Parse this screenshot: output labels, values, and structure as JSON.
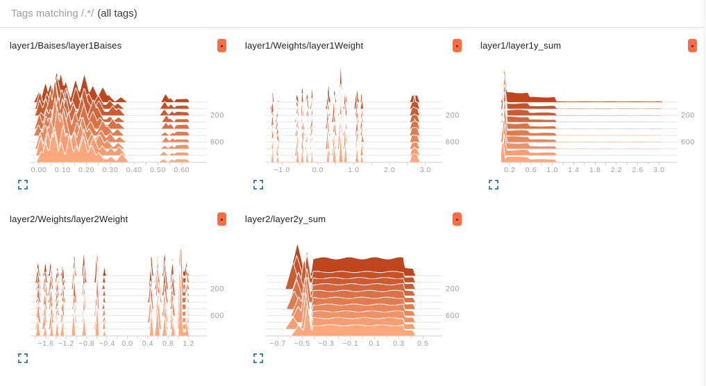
{
  "toolbar": {
    "filter_muted": "Tags matching /.*/",
    "filter_strong": "(all tags)"
  },
  "colors": {
    "page_bg": "#ffffff",
    "toolbar_border": "#e0e0e0",
    "toolbar_muted": "#9e9e9e",
    "toolbar_strong": "#3c3c3c",
    "title_text": "#212121",
    "pin_bg": "#f96c44",
    "pin_dot": "#71290f",
    "expand_icon": "#3f83a9",
    "ridge_back": "#bf451c",
    "ridge_front": "#fda87c",
    "ridge_outline": "#ffffff",
    "grid_line": "#e6e6e6",
    "axis_line": "#d9d9d9",
    "tick_mark": "#cfcfcf",
    "tick_label": "#9e9e9e"
  },
  "icons": {
    "pin": "pin-toggle-icon",
    "expand": "expand-icon"
  },
  "chart_data": [
    {
      "type": "histogram_ridgeline",
      "title": "layer1/Baises/layer1Baises",
      "x_min": -0.035,
      "x_max": 0.65,
      "x_tick_values": [
        0.0,
        0.1,
        0.2,
        0.3,
        0.4,
        0.5,
        0.6
      ],
      "x_tick_labels": [
        "0.00",
        "0.10",
        "0.20",
        "0.30",
        "0.40",
        "0.50",
        "0.60"
      ],
      "y_axis_labels": [
        {
          "text": "200",
          "line": 2
        },
        {
          "text": "600",
          "line": 6
        }
      ],
      "ridges": 10,
      "seed": 11,
      "jitter": 0.3,
      "back_flat_scale": 1.0,
      "bumps": [
        [
          0.005,
          0.4,
          0.02
        ],
        [
          0.03,
          0.6,
          0.022
        ],
        [
          0.052,
          0.72,
          0.022
        ],
        [
          0.072,
          1.0,
          0.024
        ],
        [
          0.095,
          0.8,
          0.024
        ],
        [
          0.12,
          0.62,
          0.024
        ],
        [
          0.15,
          0.55,
          0.026
        ],
        [
          0.185,
          0.62,
          0.03
        ],
        [
          0.22,
          0.5,
          0.032
        ],
        [
          0.258,
          0.36,
          0.032
        ],
        [
          0.298,
          0.22,
          0.03
        ],
        [
          0.34,
          0.14,
          0.028,
          0.8
        ],
        [
          0.528,
          0.2,
          0.02,
          -0.6
        ],
        [
          0.556,
          0.17,
          0.018,
          -0.6
        ]
      ],
      "flats": [
        [
          0.0,
          0.3,
          0.1,
          0.9
        ],
        [
          0.575,
          0.625,
          0.1,
          2.0
        ]
      ]
    },
    {
      "type": "histogram_ridgeline",
      "title": "layer1/Weights/layer1Weight",
      "x_min": -1.45,
      "x_max": 3.1,
      "x_tick_values": [
        -1.0,
        0.0,
        1.0,
        2.0,
        3.0
      ],
      "x_tick_labels": [
        "−1.0",
        "0.0",
        "1.0",
        "2.0",
        "3.0"
      ],
      "y_axis_labels": [
        {
          "text": "200",
          "line": 2
        },
        {
          "text": "600",
          "line": 6
        }
      ],
      "ridges": 10,
      "seed": 22,
      "jitter": 0.3,
      "back_flat_scale": 1.0,
      "bumps": [
        [
          -1.27,
          0.5,
          0.035
        ],
        [
          -1.13,
          0.42,
          0.03
        ],
        [
          -0.58,
          0.45,
          0.038
        ],
        [
          -0.43,
          0.58,
          0.035
        ],
        [
          -0.3,
          0.5,
          0.03
        ],
        [
          -0.17,
          0.45,
          0.03
        ],
        [
          0.28,
          0.55,
          0.04
        ],
        [
          0.46,
          0.62,
          0.042
        ],
        [
          0.63,
          1.05,
          0.048
        ],
        [
          0.76,
          0.7,
          0.03
        ],
        [
          1.08,
          0.52,
          0.04
        ],
        [
          1.23,
          0.38,
          0.035
        ],
        [
          2.7,
          0.42,
          0.04,
          -0.4
        ]
      ],
      "flats": [
        [
          2.62,
          2.78,
          0.2,
          1.4
        ]
      ]
    },
    {
      "type": "histogram_ridgeline",
      "title": "layer1/layer1y_sum",
      "x_min": 0.04,
      "x_max": 3.1,
      "x_tick_values": [
        0.2,
        0.6,
        1.0,
        1.4,
        1.8,
        2.2,
        2.6,
        3.0
      ],
      "x_tick_labels": [
        "0.2",
        "0.6",
        "1.0",
        "1.4",
        "1.8",
        "2.2",
        "2.6",
        "3.0"
      ],
      "y_axis_labels": [
        {
          "text": "200",
          "line": 2
        },
        {
          "text": "600",
          "line": 6
        }
      ],
      "ridges": 10,
      "seed": 33,
      "jitter": 0.12,
      "back_flat_scale": 1.8,
      "bumps": [
        [
          0.09,
          1.05,
          0.05,
          -0.35
        ]
      ],
      "flats": [
        [
          0.13,
          0.55,
          0.15
        ],
        [
          0.55,
          1.05,
          0.08
        ],
        [
          1.05,
          3.05,
          0.015
        ]
      ]
    },
    {
      "type": "histogram_ridgeline",
      "title": "layer2/Weights/layer2Weight",
      "x_min": -1.9,
      "x_max": 1.3,
      "x_tick_values": [
        -1.6,
        -1.2,
        -0.8,
        -0.4,
        0.0,
        0.4,
        0.8,
        1.2
      ],
      "x_tick_labels": [
        "−1.6",
        "−1.2",
        "−0.8",
        "−0.4",
        "0.0",
        "0.4",
        "0.8",
        "1.2"
      ],
      "y_axis_labels": [
        {
          "text": "200",
          "line": 2
        },
        {
          "text": "600",
          "line": 6
        }
      ],
      "ridges": 10,
      "seed": 44,
      "jitter": 0.28,
      "back_flat_scale": 1.0,
      "bumps": [
        [
          -1.75,
          0.5,
          0.04
        ],
        [
          -1.62,
          0.46,
          0.035
        ],
        [
          -1.5,
          0.55,
          0.035
        ],
        [
          -1.38,
          0.42,
          0.03
        ],
        [
          -1.27,
          0.46,
          0.032
        ],
        [
          -1.05,
          0.65,
          0.035
        ],
        [
          -0.85,
          0.68,
          0.035
        ],
        [
          -0.6,
          0.92,
          0.035
        ],
        [
          -0.46,
          0.25,
          0.028
        ],
        [
          0.46,
          0.62,
          0.04
        ],
        [
          0.6,
          0.78,
          0.045
        ],
        [
          0.74,
          0.66,
          0.042
        ],
        [
          0.88,
          0.56,
          0.04
        ],
        [
          1.04,
          0.95,
          0.042,
          1.6
        ],
        [
          1.16,
          0.45,
          0.026,
          0.6
        ]
      ],
      "flats": [
        [
          1.06,
          1.18,
          0.12,
          1.6
        ]
      ]
    },
    {
      "type": "histogram_ridgeline",
      "title": "layer2/layer2y_sum",
      "x_min": -0.8,
      "x_max": 0.55,
      "x_tick_values": [
        -0.7,
        -0.5,
        -0.3,
        -0.1,
        0.1,
        0.3,
        0.5
      ],
      "x_tick_labels": [
        "−0.7",
        "−0.5",
        "−0.3",
        "−0.1",
        "0.1",
        "0.3",
        "0.5"
      ],
      "y_axis_labels": [
        {
          "text": "200",
          "line": 2
        },
        {
          "text": "600",
          "line": 6
        }
      ],
      "ridges": 10,
      "seed": 55,
      "jitter": 0.12,
      "back_flat_scale": 1.6,
      "bumps": [
        [
          -0.55,
          0.85,
          0.065,
          -0.65
        ],
        [
          -0.47,
          0.75,
          0.038,
          0.35
        ]
      ],
      "flats": [
        [
          -0.41,
          0.34,
          0.3
        ],
        [
          0.34,
          0.42,
          0.14
        ]
      ]
    }
  ]
}
